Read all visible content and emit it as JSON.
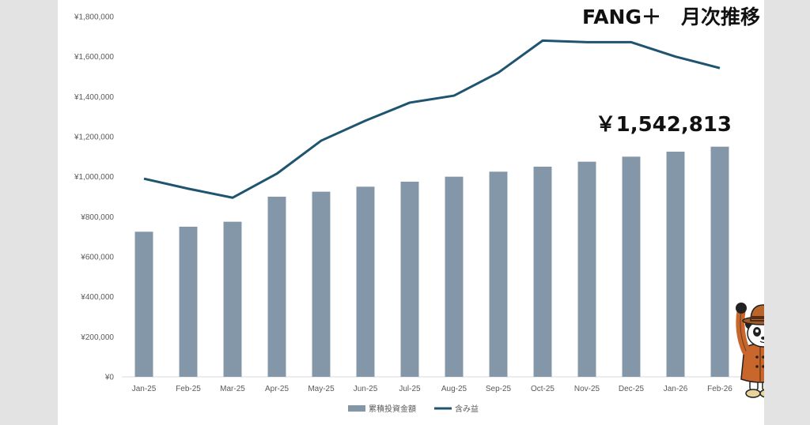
{
  "chart_data": {
    "type": "bar",
    "title": "FANG＋　月次推移",
    "annotation": "￥1,542,813",
    "categories": [
      "Jan-25",
      "Feb-25",
      "Mar-25",
      "Apr-25",
      "May-25",
      "Jun-25",
      "Jul-25",
      "Aug-25",
      "Sep-25",
      "Oct-25",
      "Nov-25",
      "Dec-25",
      "Jan-26",
      "Feb-26"
    ],
    "y_ticks": [
      "¥0",
      "¥200,000",
      "¥400,000",
      "¥600,000",
      "¥800,000",
      "¥1,000,000",
      "¥1,200,000",
      "¥1,400,000",
      "¥1,600,000",
      "¥1,800,000"
    ],
    "ylim": [
      0,
      1800000
    ],
    "grid": false,
    "legend_position": "bottom",
    "series": [
      {
        "name": "累積投資金額",
        "type": "bar",
        "color": "#8497a8",
        "values": [
          725000,
          750000,
          775000,
          900000,
          925000,
          950000,
          975000,
          1000000,
          1025000,
          1050000,
          1075000,
          1100000,
          1125000,
          1150000
        ]
      },
      {
        "name": "含み益",
        "type": "line",
        "color": "#1f5470",
        "values": [
          990000,
          940000,
          895000,
          1015000,
          1180000,
          1280000,
          1370000,
          1405000,
          1520000,
          1680000,
          1672000,
          1672000,
          1600000,
          1542813
        ]
      }
    ]
  },
  "mascot": {
    "name": "panda-detective-mascot"
  }
}
